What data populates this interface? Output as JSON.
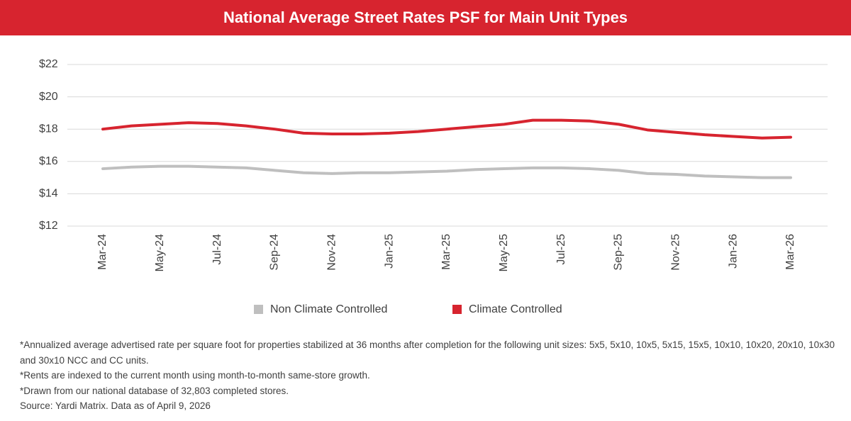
{
  "chart_data": {
    "type": "line",
    "title": "National Average Street Rates PSF for Main Unit Types",
    "categories": [
      "Mar-24",
      null,
      "May-24",
      null,
      "Jul-24",
      null,
      "Sep-24",
      null,
      "Nov-24",
      null,
      "Jan-25",
      null,
      "Mar-25",
      null,
      "May-25",
      null,
      "Jul-25",
      null,
      "Sep-25",
      null,
      "Nov-25",
      null,
      "Jan-26",
      null,
      "Mar-26"
    ],
    "series": [
      {
        "name": "Non Climate Controlled",
        "color": "#bfbfbf",
        "values": [
          15.55,
          15.65,
          15.7,
          15.7,
          15.65,
          15.6,
          15.45,
          15.3,
          15.25,
          15.3,
          15.3,
          15.35,
          15.4,
          15.5,
          15.55,
          15.6,
          15.6,
          15.55,
          15.45,
          15.25,
          15.2,
          15.1,
          15.05,
          15.0,
          15.0
        ]
      },
      {
        "name": "Climate Controlled",
        "color": "#d7242f",
        "values": [
          18.0,
          18.2,
          18.3,
          18.4,
          18.35,
          18.2,
          18.0,
          17.75,
          17.7,
          17.7,
          17.75,
          17.85,
          18.0,
          18.15,
          18.3,
          18.55,
          18.55,
          18.5,
          18.3,
          17.95,
          17.8,
          17.65,
          17.55,
          17.45,
          17.5
        ]
      }
    ],
    "ylim": [
      12,
      22
    ],
    "yticks": [
      {
        "value": 12,
        "label": "$12"
      },
      {
        "value": 14,
        "label": "$14"
      },
      {
        "value": 16,
        "label": "$16"
      },
      {
        "value": 18,
        "label": "$18"
      },
      {
        "value": 20,
        "label": "$20"
      },
      {
        "value": 22,
        "label": "$22"
      }
    ],
    "grid": true,
    "legend": "bottom",
    "notes": [
      "*Annualized average advertised rate per square foot for properties stabilized at 36 months after completion for the following unit sizes: 5x5, 5x10, 10x5, 5x15, 15x5, 10x10, 10x20, 20x10, 10x30 and 30x10 NCC and CC units.",
      "*Rents are indexed to the current month using month-to-month same-store growth.",
      "*Drawn from our national database of 32,803 completed stores.",
      "Source: Yardi Matrix. Data as of April 9, 2026"
    ]
  }
}
